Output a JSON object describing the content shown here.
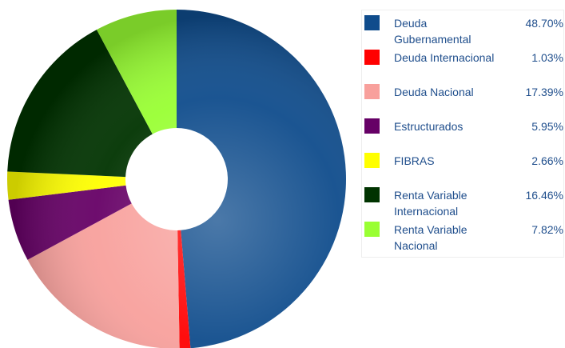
{
  "chart_data": {
    "type": "donut",
    "categories": [
      "Deuda Gubernamental",
      "Deuda Internacional",
      "Deuda Nacional",
      "Estructurados",
      "FIBRAS",
      "Renta Variable Internacional",
      "Renta Variable Nacional"
    ],
    "values": [
      48.7,
      1.03,
      17.39,
      5.95,
      2.66,
      16.46,
      7.82
    ],
    "value_labels": [
      "48.70%",
      "1.03%",
      "17.39%",
      "5.95%",
      "2.66%",
      "16.46%",
      "7.82%"
    ],
    "colors": [
      "#0f4c8c",
      "#ff0000",
      "#f8a09c",
      "#660066",
      "#ffff00",
      "#003300",
      "#99ff33"
    ],
    "legend": "right"
  }
}
